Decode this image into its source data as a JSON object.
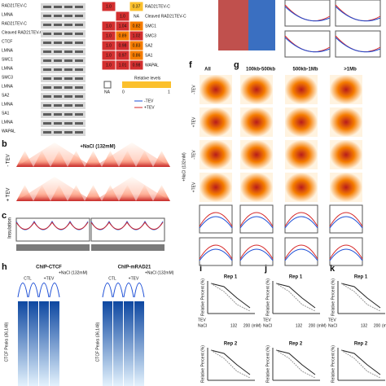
{
  "panel_letters": [
    "b",
    "c",
    "f",
    "g",
    "h",
    "i",
    "j",
    "k"
  ],
  "blot": {
    "labels": [
      "RAD21TEV-C",
      "LMNA",
      "RAD21TEV-C",
      "Cleaved RAD21TEV-C",
      "CTCF",
      "LMNA",
      "SMC1",
      "LMNA",
      "SMC3",
      "LMNA",
      "SA2",
      "LMNA",
      "SA1",
      "LMNA",
      "WAPAL"
    ]
  },
  "levels": {
    "rows": [
      "RAD21TEV-C",
      "Cleaved RAD21TEV-C",
      "SMC1",
      "SMC3",
      "SA2",
      "SA1",
      "WAPAL"
    ],
    "cells": [
      [
        "1.0",
        "",
        "0.37"
      ],
      [
        "",
        "1.0",
        "NA"
      ],
      [
        "1.0",
        "1.04",
        "0.82"
      ],
      [
        "1.0",
        "0.89",
        "1.02"
      ],
      [
        "1.0",
        "0.98",
        "0.83"
      ],
      [
        "1.0",
        "0.97",
        "0.86"
      ],
      [
        "1.0",
        "1.01",
        "0.98"
      ]
    ],
    "legend_title": "Relative levels",
    "legend_na": "NA",
    "legend_min": "0",
    "legend_max": "1"
  },
  "conditions": {
    "minus_tev": "-TEV",
    "plus_tev": "+TEV"
  },
  "panel_b": {
    "title": "+NaCl (132mM)",
    "rows": [
      "- TEV",
      "+ TEV"
    ]
  },
  "panel_c": {
    "ylabel": "Insulation"
  },
  "panel_f": {
    "title": "All",
    "rows": [
      "-TEV",
      "+TEV",
      "-TEV",
      "+TEV"
    ],
    "side": "+NaCl (132mM)"
  },
  "panel_g": {
    "columns": [
      "100kb-500kb",
      "500kb-1Mb",
      ">1Mb"
    ]
  },
  "panel_h": {
    "titles": [
      "ChIP-CTCF",
      "ChIP-mRAD21"
    ],
    "sub": "+NaCl (132mM)",
    "cols": [
      "CTL",
      "+TEV",
      "CTL",
      "+TEV"
    ],
    "ylabel": "CTCF Peaks (36,148)"
  },
  "panel_ijk": {
    "titles": [
      "Rep 1",
      "Rep 2"
    ],
    "ylabel": "Relative Percent (%)",
    "tev": "TEV",
    "nacl": "NaCl",
    "unit": "(mM)",
    "salt": [
      "132",
      "200"
    ]
  }
}
